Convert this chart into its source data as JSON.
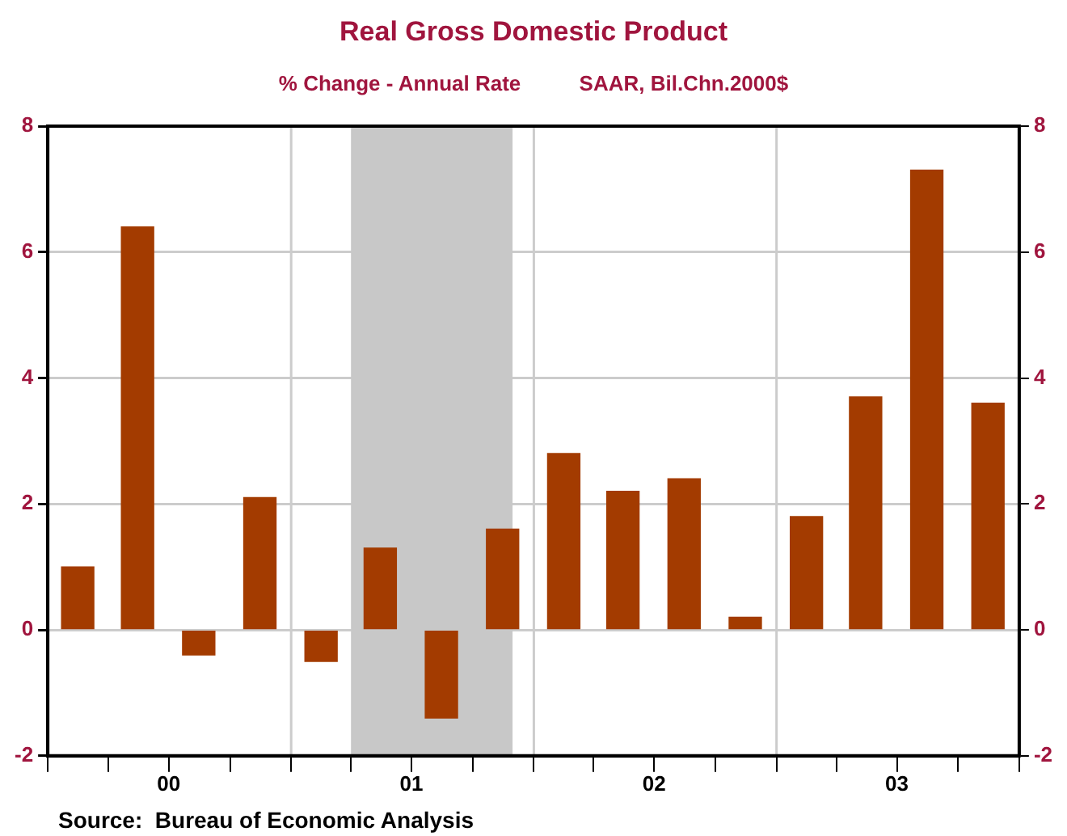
{
  "chart_data": {
    "type": "bar",
    "title": "Real Gross Domestic Product",
    "subtitle": "% Change - Annual Rate          SAAR, Bil.Chn.2000$",
    "x": [
      "2000-02-15",
      "2000-05-15",
      "2000-08-15",
      "2000-11-15",
      "2001-02-15",
      "2001-05-15",
      "2001-08-15",
      "2001-11-15",
      "2002-02-15",
      "2002-05-15",
      "2002-08-15",
      "2002-11-15",
      "2003-02-15",
      "2003-05-15",
      "2003-08-15",
      "2003-11-15"
    ],
    "series": [
      {
        "color": "#a33b00",
        "values": [
          1.0,
          6.4,
          -0.4,
          2.1,
          -0.5,
          1.3,
          -1.4,
          1.6,
          2.8,
          2.2,
          2.4,
          0.2,
          1.8,
          3.7,
          7.3,
          3.6
        ]
      }
    ],
    "xlim": [
      "2000-01-01",
      "2004-01-01"
    ],
    "xticks": [
      {
        "value": "2000-01-01",
        "label": null
      },
      {
        "value": "2000-04-01",
        "label": null
      },
      {
        "value": "2000-07-01",
        "label": "00"
      },
      {
        "value": "2000-10-01",
        "label": null
      },
      {
        "value": "2001-01-01",
        "label": null
      },
      {
        "value": "2001-04-01",
        "label": null
      },
      {
        "value": "2001-07-01",
        "label": "01"
      },
      {
        "value": "2001-10-01",
        "label": null
      },
      {
        "value": "2002-01-01",
        "label": null
      },
      {
        "value": "2002-04-01",
        "label": null
      },
      {
        "value": "2002-07-01",
        "label": "02"
      },
      {
        "value": "2002-10-01",
        "label": null
      },
      {
        "value": "2003-01-01",
        "label": null
      },
      {
        "value": "2003-04-01",
        "label": null
      },
      {
        "value": "2003-07-01",
        "label": "03"
      },
      {
        "value": "2003-10-01",
        "label": null
      },
      {
        "value": "2004-01-01",
        "label": null
      }
    ],
    "ylim": [
      -2,
      8
    ],
    "yticks": [
      -2,
      0,
      2,
      4,
      6,
      8
    ],
    "y2lim": [
      -2,
      8
    ],
    "y2ticks": [
      -2,
      0,
      2,
      4,
      6,
      8
    ],
    "bands": [
      {
        "axis": "x",
        "from": "2001-04-01",
        "to": "2001-11-30",
        "color": "#c8c8c8"
      }
    ],
    "ref_lines": [
      {
        "axis": "x",
        "value": "2001-01-01",
        "color": "#cccccc"
      },
      {
        "axis": "x",
        "value": "2002-01-01",
        "color": "#cccccc"
      },
      {
        "axis": "x",
        "value": "2003-01-01",
        "color": "#cccccc"
      }
    ],
    "grid": "y",
    "annotations": [
      "Source:  Bureau of Economic Analysis"
    ]
  }
}
